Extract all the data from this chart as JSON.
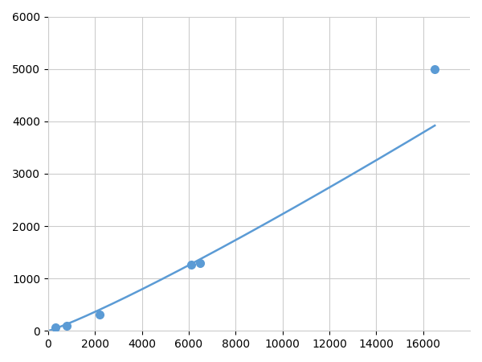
{
  "x": [
    300,
    800,
    2200,
    6100,
    6500,
    16500
  ],
  "y": [
    60,
    100,
    310,
    1270,
    1290,
    5000
  ],
  "line_color": "#5b9bd5",
  "marker_color": "#5b9bd5",
  "marker_size": 7,
  "line_width": 1.8,
  "xlim": [
    0,
    18000
  ],
  "ylim": [
    0,
    6000
  ],
  "xticks": [
    0,
    2000,
    4000,
    6000,
    8000,
    10000,
    12000,
    14000,
    16000
  ],
  "yticks": [
    0,
    1000,
    2000,
    3000,
    4000,
    5000,
    6000
  ],
  "grid_color": "#cccccc",
  "background_color": "#ffffff",
  "tick_fontsize": 10
}
